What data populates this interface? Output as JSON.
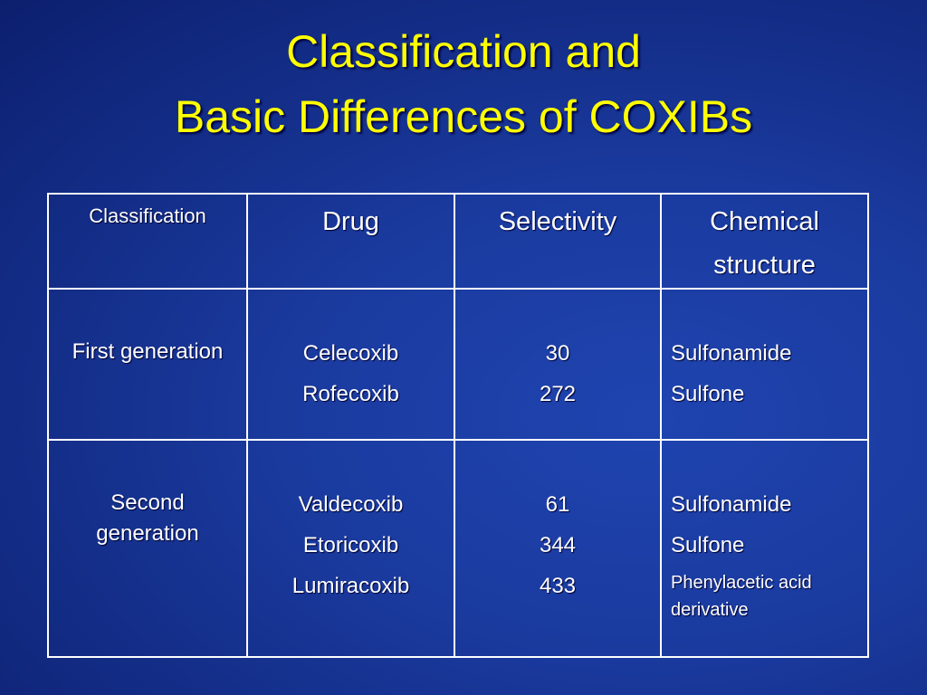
{
  "slide": {
    "title": [
      "Classification and",
      "Basic Differences of COXIBs"
    ]
  },
  "table": {
    "header": [
      "Classification",
      "Drug",
      "Selectivity",
      "Chemical structure"
    ],
    "rows": [
      {
        "classification": "First generation",
        "drugs": [
          "Celecoxib",
          "Rofecoxib"
        ],
        "selectivity": [
          30,
          272
        ],
        "structure": [
          "Sulfonamide",
          "Sulfone"
        ]
      },
      {
        "classification": "Second generation",
        "drugs": [
          "Valdecoxib",
          "Etoricoxib",
          "Lumiracoxib"
        ],
        "selectivity": [
          61,
          344,
          433
        ],
        "structure": [
          "Sulfonamide",
          "Sulfone",
          "Phenylacetic acid derivative"
        ]
      }
    ]
  }
}
